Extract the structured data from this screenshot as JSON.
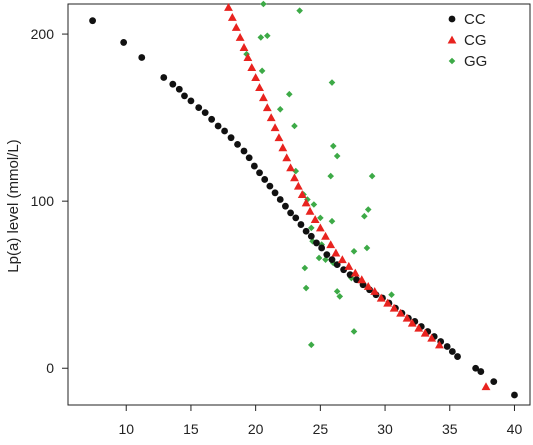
{
  "chart_data": {
    "type": "scatter",
    "title": "",
    "xlabel": "",
    "ylabel": "Lp(a) level (mmol/L)",
    "xlim": [
      5.5,
      41.2
    ],
    "ylim": [
      -22,
      218
    ],
    "x_ticks": [
      "10",
      "15",
      "20",
      "25",
      "30",
      "35",
      "40"
    ],
    "y_ticks": [
      "0",
      "100",
      "200"
    ],
    "grid": false,
    "legend_position": "top-right",
    "series": [
      {
        "name": "CC",
        "marker": "circle",
        "color": "#111111",
        "points": [
          [
            7.4,
            208
          ],
          [
            9.8,
            195
          ],
          [
            11.2,
            186
          ],
          [
            12.9,
            174
          ],
          [
            13.6,
            170
          ],
          [
            14.1,
            167
          ],
          [
            14.5,
            163
          ],
          [
            15.0,
            160
          ],
          [
            15.6,
            156
          ],
          [
            16.1,
            153
          ],
          [
            16.6,
            149
          ],
          [
            17.1,
            145
          ],
          [
            17.6,
            142
          ],
          [
            18.1,
            138
          ],
          [
            18.6,
            134
          ],
          [
            19.1,
            130
          ],
          [
            19.5,
            126
          ],
          [
            19.9,
            121
          ],
          [
            20.3,
            117
          ],
          [
            20.7,
            113
          ],
          [
            21.1,
            109
          ],
          [
            21.5,
            105
          ],
          [
            21.9,
            101
          ],
          [
            22.3,
            97
          ],
          [
            22.7,
            93
          ],
          [
            23.1,
            90
          ],
          [
            23.5,
            86
          ],
          [
            23.9,
            82
          ],
          [
            24.3,
            79
          ],
          [
            24.7,
            75
          ],
          [
            25.1,
            72
          ],
          [
            25.5,
            68
          ],
          [
            25.9,
            65
          ],
          [
            26.3,
            62
          ],
          [
            26.8,
            59
          ],
          [
            27.3,
            56
          ],
          [
            27.8,
            53
          ],
          [
            28.3,
            50
          ],
          [
            28.8,
            47
          ],
          [
            29.3,
            44
          ],
          [
            29.8,
            42
          ],
          [
            30.3,
            39
          ],
          [
            30.8,
            36
          ],
          [
            31.3,
            33
          ],
          [
            31.8,
            30
          ],
          [
            32.3,
            28
          ],
          [
            32.8,
            25
          ],
          [
            33.3,
            22
          ],
          [
            33.8,
            19
          ],
          [
            34.3,
            16
          ],
          [
            34.8,
            13
          ],
          [
            35.2,
            10
          ],
          [
            35.6,
            7
          ],
          [
            37.0,
            0
          ],
          [
            37.4,
            -2
          ],
          [
            38.4,
            -8
          ],
          [
            40.0,
            -16
          ]
        ]
      },
      {
        "name": "CG",
        "marker": "triangle",
        "color": "#e8231f",
        "points": [
          [
            17.9,
            216
          ],
          [
            18.2,
            210
          ],
          [
            18.5,
            204
          ],
          [
            18.8,
            198
          ],
          [
            19.1,
            192
          ],
          [
            19.4,
            186
          ],
          [
            19.7,
            180
          ],
          [
            20.0,
            174
          ],
          [
            20.3,
            168
          ],
          [
            20.6,
            162
          ],
          [
            20.9,
            156
          ],
          [
            21.2,
            150
          ],
          [
            21.5,
            144
          ],
          [
            21.8,
            138
          ],
          [
            22.1,
            132
          ],
          [
            22.4,
            126
          ],
          [
            22.7,
            120
          ],
          [
            23.0,
            114
          ],
          [
            23.3,
            109
          ],
          [
            23.6,
            104
          ],
          [
            23.9,
            99
          ],
          [
            24.2,
            94
          ],
          [
            24.6,
            89
          ],
          [
            25.0,
            84
          ],
          [
            25.4,
            79
          ],
          [
            25.8,
            74
          ],
          [
            26.2,
            69
          ],
          [
            26.7,
            65
          ],
          [
            27.2,
            61
          ],
          [
            27.7,
            57
          ],
          [
            28.2,
            53
          ],
          [
            28.7,
            49
          ],
          [
            29.2,
            46
          ],
          [
            29.7,
            42
          ],
          [
            30.2,
            39
          ],
          [
            30.7,
            36
          ],
          [
            31.2,
            33
          ],
          [
            31.7,
            30
          ],
          [
            32.1,
            27
          ],
          [
            32.6,
            24
          ],
          [
            33.1,
            21
          ],
          [
            33.6,
            18
          ],
          [
            34.2,
            14
          ],
          [
            37.8,
            -11
          ]
        ]
      },
      {
        "name": "GG",
        "marker": "diamond",
        "color": "#3daa47",
        "points": [
          [
            20.6,
            218
          ],
          [
            23.4,
            214
          ],
          [
            20.4,
            198
          ],
          [
            20.9,
            199
          ],
          [
            19.3,
            188
          ],
          [
            20.5,
            178
          ],
          [
            22.6,
            164
          ],
          [
            25.9,
            171
          ],
          [
            21.9,
            155
          ],
          [
            23.0,
            145
          ],
          [
            23.1,
            118
          ],
          [
            23.7,
            104
          ],
          [
            26.0,
            133
          ],
          [
            26.3,
            127
          ],
          [
            25.8,
            115
          ],
          [
            29.0,
            115
          ],
          [
            28.7,
            95
          ],
          [
            24.0,
            101
          ],
          [
            24.5,
            98
          ],
          [
            25.0,
            90
          ],
          [
            25.9,
            88
          ],
          [
            28.4,
            91
          ],
          [
            24.3,
            84
          ],
          [
            24.4,
            76
          ],
          [
            25.1,
            74
          ],
          [
            27.6,
            70
          ],
          [
            28.6,
            72
          ],
          [
            24.9,
            66
          ],
          [
            25.4,
            65
          ],
          [
            26.0,
            63
          ],
          [
            23.8,
            60
          ],
          [
            26.3,
            46
          ],
          [
            23.9,
            48
          ],
          [
            27.4,
            54
          ],
          [
            30.5,
            44
          ],
          [
            26.5,
            43
          ],
          [
            27.6,
            22
          ],
          [
            24.3,
            14
          ]
        ]
      }
    ]
  }
}
